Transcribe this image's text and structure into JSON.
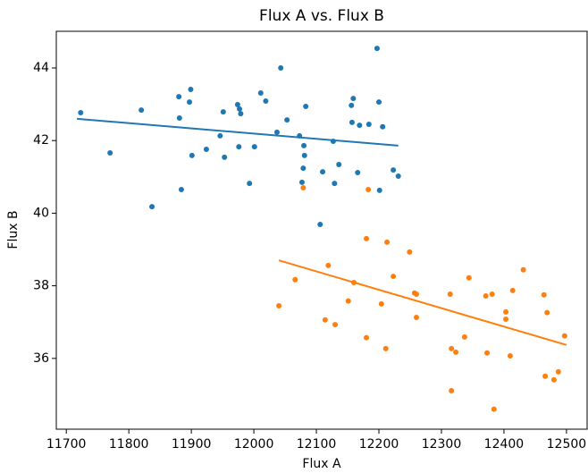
{
  "chart_data": {
    "type": "scatter",
    "title": "Flux A vs. Flux B",
    "x_label": "Flux A",
    "y_label": "Flux B",
    "xlim": [
      11684,
      12533
    ],
    "ylim": [
      34.05,
      45.01
    ],
    "xticks": [
      11700,
      11800,
      11900,
      12000,
      12100,
      12200,
      12300,
      12400,
      12500
    ],
    "yticks": [
      36,
      38,
      40,
      42,
      44
    ],
    "series": [
      {
        "color": "#1f77b4",
        "x": [
          11723,
          11770,
          11820,
          11837,
          11880,
          11881,
          11884,
          11899,
          11897,
          11901,
          11924,
          11946,
          11951,
          11953,
          11974,
          11977,
          11979,
          11976,
          11993,
          12001,
          12011,
          12019,
          12037,
          12043,
          12053,
          12073,
          12080,
          12079,
          12081,
          12077,
          12083,
          12106,
          12110,
          12127,
          12129,
          12136,
          12156,
          12159,
          12157,
          12166,
          12169,
          12184,
          12197,
          12200,
          12201,
          12206,
          12223,
          12231
        ],
        "values": [
          42.77,
          41.66,
          42.84,
          40.18,
          43.21,
          42.62,
          40.65,
          43.41,
          43.06,
          41.59,
          41.76,
          42.13,
          42.79,
          41.54,
          42.99,
          42.87,
          42.74,
          41.83,
          40.82,
          41.83,
          43.31,
          43.09,
          42.23,
          44.0,
          42.57,
          42.13,
          41.86,
          41.24,
          41.59,
          40.85,
          42.94,
          39.69,
          41.14,
          41.98,
          40.82,
          41.34,
          42.97,
          43.16,
          42.5,
          41.12,
          42.42,
          42.45,
          44.54,
          43.06,
          40.63,
          42.38,
          41.19,
          41.02
        ],
        "trend": {
          "x": [
            11717,
            12231
          ],
          "values": [
            42.6,
            41.86
          ]
        }
      },
      {
        "color": "#ff7f0e",
        "x": [
          12079,
          12183,
          12040,
          12066,
          12114,
          12119,
          12130,
          12151,
          12160,
          12180,
          12180,
          12204,
          12213,
          12211,
          12223,
          12249,
          12257,
          12260,
          12260,
          12314,
          12316,
          12316,
          12323,
          12337,
          12344,
          12371,
          12373,
          12381,
          12384,
          12403,
          12403,
          12410,
          12414,
          12431,
          12464,
          12469,
          12466,
          12480,
          12487,
          12497
        ],
        "values": [
          40.7,
          40.65,
          37.45,
          38.17,
          37.06,
          38.56,
          36.93,
          37.58,
          38.09,
          39.3,
          36.57,
          37.5,
          39.2,
          36.27,
          38.26,
          38.93,
          37.8,
          37.77,
          37.13,
          37.77,
          36.27,
          35.11,
          36.17,
          36.59,
          38.22,
          37.72,
          36.15,
          37.77,
          34.6,
          37.28,
          37.08,
          36.07,
          37.87,
          38.44,
          37.75,
          37.26,
          35.51,
          35.41,
          35.63,
          36.62
        ],
        "trend": {
          "x": [
            12040,
            12500
          ],
          "values": [
            38.7,
            36.37
          ]
        }
      }
    ]
  }
}
